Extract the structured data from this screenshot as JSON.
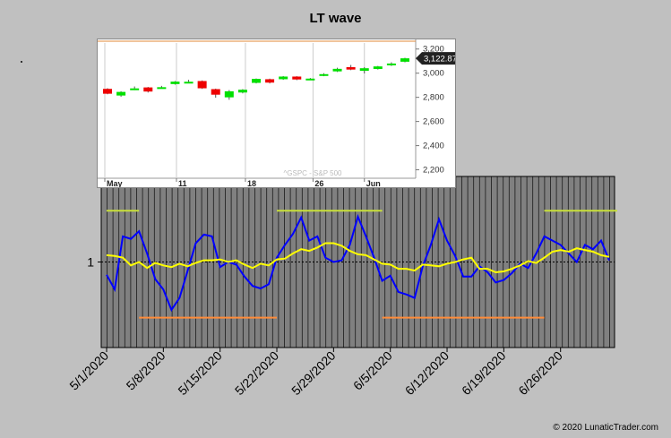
{
  "title": "LT wave",
  "copyright": "© 2020 LunaticTrader.com",
  "colors": {
    "background": "#c0c0c0",
    "plot_bg": "#808080",
    "wave": "#0000ff",
    "avg": "#ffff00",
    "upper_band": "#c8e03a",
    "lower_band": "#ff8c3a",
    "bull": "#00e000",
    "bear": "#ee0000"
  },
  "chart_data": [
    {
      "type": "line",
      "title": "LT wave",
      "x_tick_labels": [
        "5/1/2020",
        "5/8/2020",
        "5/15/2020",
        "5/22/2020",
        "5/29/2020",
        "6/5/2020",
        "6/12/2020",
        "6/19/2020",
        "6/26/2020"
      ],
      "y_tick_labels": [
        "1"
      ],
      "ylim": [
        0,
        2
      ],
      "grid": true,
      "series": [
        {
          "values": [
            0.85,
            0.68,
            1.3,
            1.27,
            1.36,
            1.1,
            0.8,
            0.68,
            0.44,
            0.58,
            0.9,
            1.22,
            1.32,
            1.3,
            0.94,
            1.0,
            0.97,
            0.83,
            0.72,
            0.69,
            0.74,
            1.05,
            1.2,
            1.33,
            1.52,
            1.25,
            1.3,
            1.05,
            1.0,
            1.02,
            1.2,
            1.53,
            1.3,
            1.05,
            0.78,
            0.84,
            0.65,
            0.62,
            0.58,
            0.95,
            1.2,
            1.5,
            1.25,
            1.07,
            0.83,
            0.83,
            0.95,
            0.88,
            0.76,
            0.79,
            0.87,
            0.98,
            0.93,
            1.1,
            1.3,
            1.25,
            1.2,
            1.1,
            1.0,
            1.2,
            1.15,
            1.25,
            1.02
          ]
        },
        {
          "values": [
            1.08,
            1.07,
            1.05,
            0.96,
            1.0,
            0.93,
            0.99,
            0.96,
            0.94,
            0.98,
            0.95,
            0.99,
            1.02,
            1.02,
            1.03,
            1.0,
            1.02,
            0.97,
            0.93,
            0.98,
            0.96,
            1.03,
            1.04,
            1.1,
            1.15,
            1.13,
            1.17,
            1.22,
            1.22,
            1.19,
            1.13,
            1.09,
            1.08,
            1.03,
            0.98,
            0.97,
            0.92,
            0.92,
            0.9,
            0.97,
            0.96,
            0.95,
            0.98,
            1.0,
            1.03,
            1.05,
            0.92,
            0.92,
            0.88,
            0.89,
            0.92,
            0.96,
            1.01,
            0.99,
            1.05,
            1.12,
            1.14,
            1.12,
            1.16,
            1.14,
            1.12,
            1.08,
            1.06
          ]
        }
      ],
      "reference_lines": [
        {
          "kind": "upper",
          "y": 1.6,
          "x_range": [
            0,
            4
          ]
        },
        {
          "kind": "upper",
          "y": 1.6,
          "x_range": [
            21,
            34
          ]
        },
        {
          "kind": "upper",
          "y": 1.6,
          "x_range": [
            54,
            63
          ]
        },
        {
          "kind": "lower",
          "y": 0.35,
          "x_range": [
            4,
            21
          ]
        },
        {
          "kind": "lower",
          "y": 0.35,
          "x_range": [
            34,
            54
          ]
        }
      ]
    },
    {
      "type": "candlestick",
      "x_tick_labels": [
        "May",
        "11",
        "18",
        "26",
        "Jun"
      ],
      "y_tick_labels": [
        "2,200",
        "2,400",
        "2,600",
        "2,800",
        "3,000",
        "3,200"
      ],
      "ylim": [
        2130,
        3250
      ],
      "last_price_label": "3,122.87",
      "watermark": "^GSPC - S&P 500",
      "candles": [
        {
          "o": 2870,
          "c": 2830,
          "h": 2875,
          "l": 2825
        },
        {
          "o": 2815,
          "c": 2845,
          "h": 2850,
          "l": 2805
        },
        {
          "o": 2868,
          "c": 2874,
          "h": 2890,
          "l": 2860
        },
        {
          "o": 2882,
          "c": 2848,
          "h": 2886,
          "l": 2840
        },
        {
          "o": 2880,
          "c": 2884,
          "h": 2895,
          "l": 2875
        },
        {
          "o": 2910,
          "c": 2930,
          "h": 2935,
          "l": 2905
        },
        {
          "o": 2925,
          "c": 2929,
          "h": 2945,
          "l": 2920
        },
        {
          "o": 2935,
          "c": 2875,
          "h": 2940,
          "l": 2870
        },
        {
          "o": 2868,
          "c": 2822,
          "h": 2872,
          "l": 2797
        },
        {
          "o": 2800,
          "c": 2850,
          "h": 2860,
          "l": 2780
        },
        {
          "o": 2840,
          "c": 2863,
          "h": 2868,
          "l": 2833
        },
        {
          "o": 2920,
          "c": 2953,
          "h": 2956,
          "l": 2915
        },
        {
          "o": 2950,
          "c": 2922,
          "h": 2955,
          "l": 2915
        },
        {
          "o": 2950,
          "c": 2972,
          "h": 2976,
          "l": 2945
        },
        {
          "o": 2972,
          "c": 2948,
          "h": 2975,
          "l": 2942
        },
        {
          "o": 2952,
          "c": 2955,
          "h": 2960,
          "l": 2945
        },
        {
          "o": 2985,
          "c": 2992,
          "h": 3000,
          "l": 2975
        },
        {
          "o": 3015,
          "c": 3036,
          "h": 3045,
          "l": 3010
        },
        {
          "o": 3050,
          "c": 3030,
          "h": 3068,
          "l": 3025
        },
        {
          "o": 3020,
          "c": 3041,
          "h": 3050,
          "l": 2998
        },
        {
          "o": 3035,
          "c": 3056,
          "h": 3060,
          "l": 3030
        },
        {
          "o": 3065,
          "c": 3080,
          "h": 3090,
          "l": 3060
        },
        {
          "o": 3095,
          "c": 3123,
          "h": 3128,
          "l": 3090
        }
      ]
    }
  ]
}
